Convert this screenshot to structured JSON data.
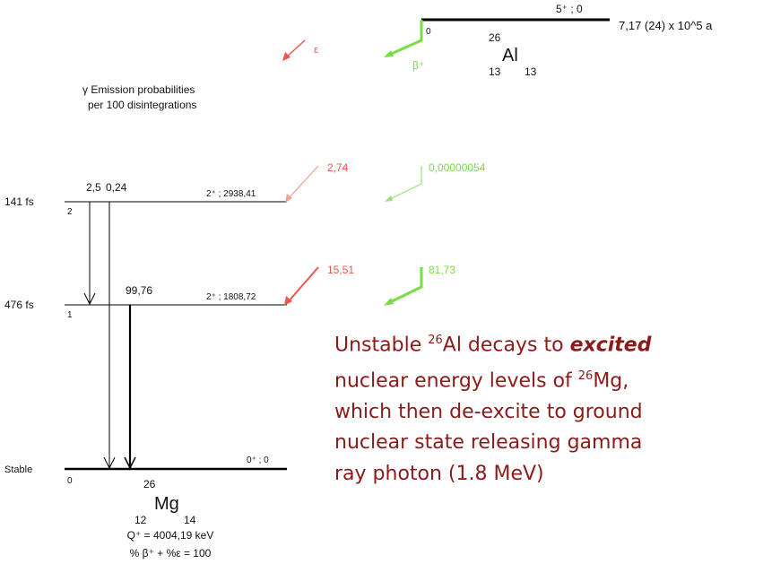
{
  "parent": {
    "spin": "5⁺ ; 0",
    "half_life": "7,17 (24) x 10^5 a",
    "level": "0",
    "mass": "26",
    "symbol": "Al",
    "z": "13",
    "n": "13"
  },
  "decay_modes": {
    "ec": "ε",
    "beta": "β⁺"
  },
  "caption": [
    "γ Emission probabilities",
    "per 100 disintegrations"
  ],
  "levels": [
    {
      "half_life": "141 fs",
      "index": "2",
      "spin": "2⁺ ; 2938,41",
      "ec": "2,74",
      "beta": "0,00000054"
    },
    {
      "half_life": "476 fs",
      "index": "1",
      "spin": "2⁺ ; 1808,72",
      "ec": "15,51",
      "beta": "81,73"
    },
    {
      "half_life": "Stable",
      "index": "0",
      "spin": "0⁺ ; 0"
    }
  ],
  "gammas": [
    "2,5",
    "0,24",
    "99,76"
  ],
  "daughter": {
    "mass": "26",
    "symbol": "Mg",
    "z": "12",
    "n": "14",
    "q": "Q⁺ = 4004,19 keV",
    "sum": "% β⁺ + %ε = 100"
  },
  "annotation": {
    "line1": [
      "Unstable",
      "26",
      "Al decays to",
      "excited"
    ],
    "line2": [
      "nuclear energy levels of",
      "26",
      "Mg,"
    ],
    "line3": "which then de-excite to ground",
    "line4": "nuclear state releasing gamma",
    "line5": "ray photon (1.8 MeV)"
  }
}
